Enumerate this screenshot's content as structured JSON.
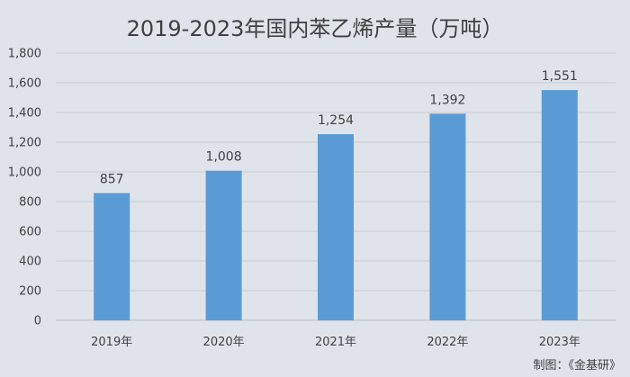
{
  "chart_data": {
    "type": "bar",
    "title": "2019-2023年国内苯乙烯产量（万吨）",
    "categories": [
      "2019年",
      "2020年",
      "2021年",
      "2022年",
      "2023年"
    ],
    "values": [
      857,
      1008,
      1254,
      1392,
      1551
    ],
    "value_labels": [
      "857",
      "1,008",
      "1,254",
      "1,392",
      "1,551"
    ],
    "ylim": [
      0,
      1800
    ],
    "yticks": [
      0,
      200,
      400,
      600,
      800,
      1000,
      1200,
      1400,
      1600,
      1800
    ],
    "ytick_labels": [
      "0",
      "200",
      "400",
      "600",
      "800",
      "1,000",
      "1,200",
      "1,400",
      "1,600",
      "1,800"
    ],
    "grid": true,
    "legend": "none",
    "bar_color": "#5b9bd5",
    "source": "制图：《金基研》"
  }
}
